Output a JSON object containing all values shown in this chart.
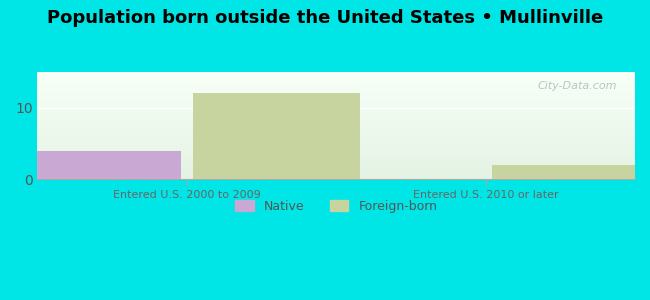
{
  "title": "Population born outside the United States • Mullinville",
  "groups": [
    "Entered U.S. 2000 to 2009",
    "Entered U.S. 2010 or later"
  ],
  "series": {
    "Native": [
      4,
      0
    ],
    "Foreign-born": [
      12,
      2
    ]
  },
  "native_color": "#c9a8d4",
  "foreign_color": "#c8d4a0",
  "bg_outer": "#00e5e5",
  "ylim": [
    0,
    15
  ],
  "yticks": [
    0,
    10
  ],
  "bar_width": 0.28,
  "group_positions": [
    0.25,
    0.75
  ],
  "legend_labels": [
    "Native",
    "Foreign-born"
  ],
  "watermark": "City-Data.com"
}
